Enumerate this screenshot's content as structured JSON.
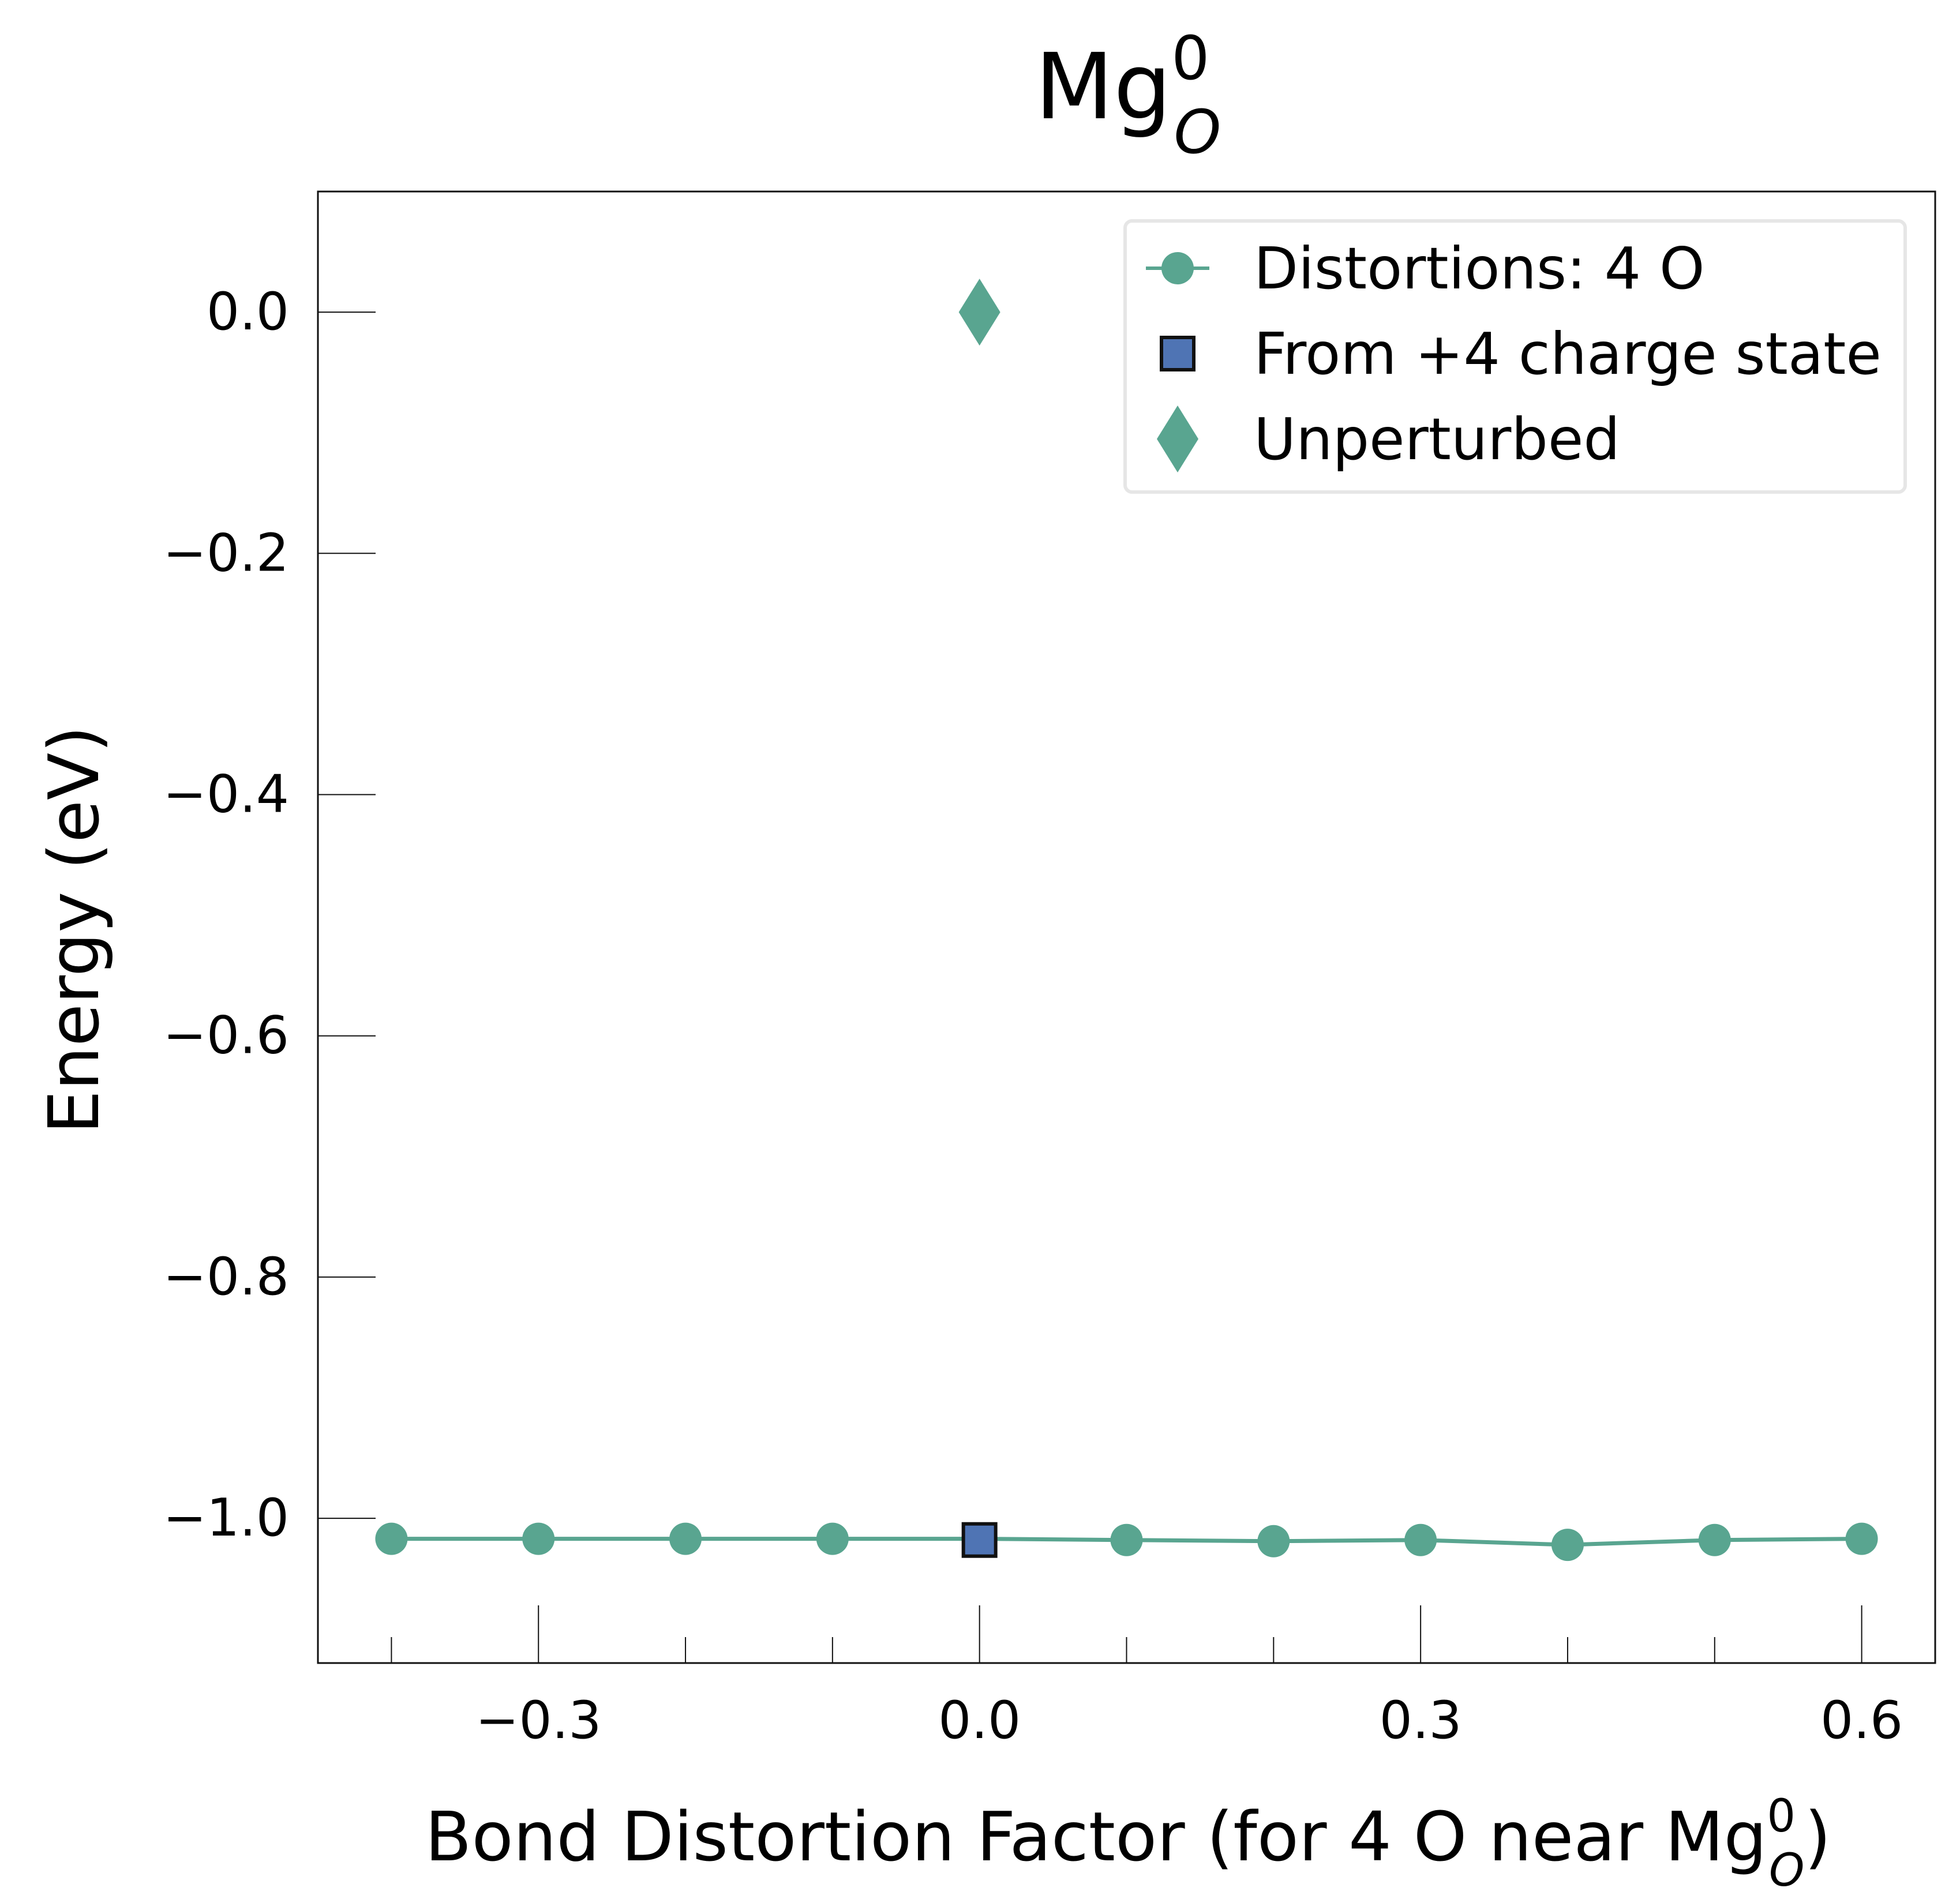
{
  "chart_data": {
    "type": "line",
    "title": {
      "base": "Mg",
      "sup": "0",
      "sub": "O"
    },
    "xlabel": {
      "prefix": "Bond Distortion Factor (for 4 O near ",
      "base": "Mg",
      "sup": "0",
      "sub": "O",
      "suffix": ")"
    },
    "ylabel": "Energy (eV)",
    "xlim": [
      -0.45,
      0.65
    ],
    "ylim": [
      -1.12,
      0.1
    ],
    "x_major_ticks": [
      -0.3,
      0.0,
      0.3,
      0.6
    ],
    "x_major_tick_labels": [
      "−0.3",
      "0.0",
      "0.3",
      "0.6"
    ],
    "x_minor_ticks": [
      -0.4,
      -0.2,
      -0.1,
      0.1,
      0.2,
      0.4,
      0.5
    ],
    "y_ticks": [
      0.0,
      -0.2,
      -0.4,
      -0.6,
      -0.8,
      -1.0
    ],
    "y_tick_labels": [
      "0.0",
      "−0.2",
      "−0.4",
      "−0.6",
      "−0.8",
      "−1.0"
    ],
    "grid": false,
    "legend_position": "top-right",
    "series": [
      {
        "name": "Distortions: 4 O",
        "marker": "circle",
        "color": "#59a590",
        "x": [
          -0.4,
          -0.3,
          -0.2,
          -0.1,
          0.0,
          0.1,
          0.2,
          0.3,
          0.4,
          0.5,
          0.6
        ],
        "y": [
          -1.017,
          -1.017,
          -1.017,
          -1.017,
          -1.017,
          -1.018,
          -1.019,
          -1.018,
          -1.022,
          -1.018,
          -1.017
        ]
      },
      {
        "name": "From +4 charge state",
        "marker": "square",
        "color": "#4f74b4",
        "edge_color": "#111111",
        "x": [
          0.0
        ],
        "y": [
          -1.018
        ]
      },
      {
        "name": "Unperturbed",
        "marker": "diamond",
        "color": "#59a590",
        "x": [
          0.0
        ],
        "y": [
          0.0
        ]
      }
    ]
  }
}
